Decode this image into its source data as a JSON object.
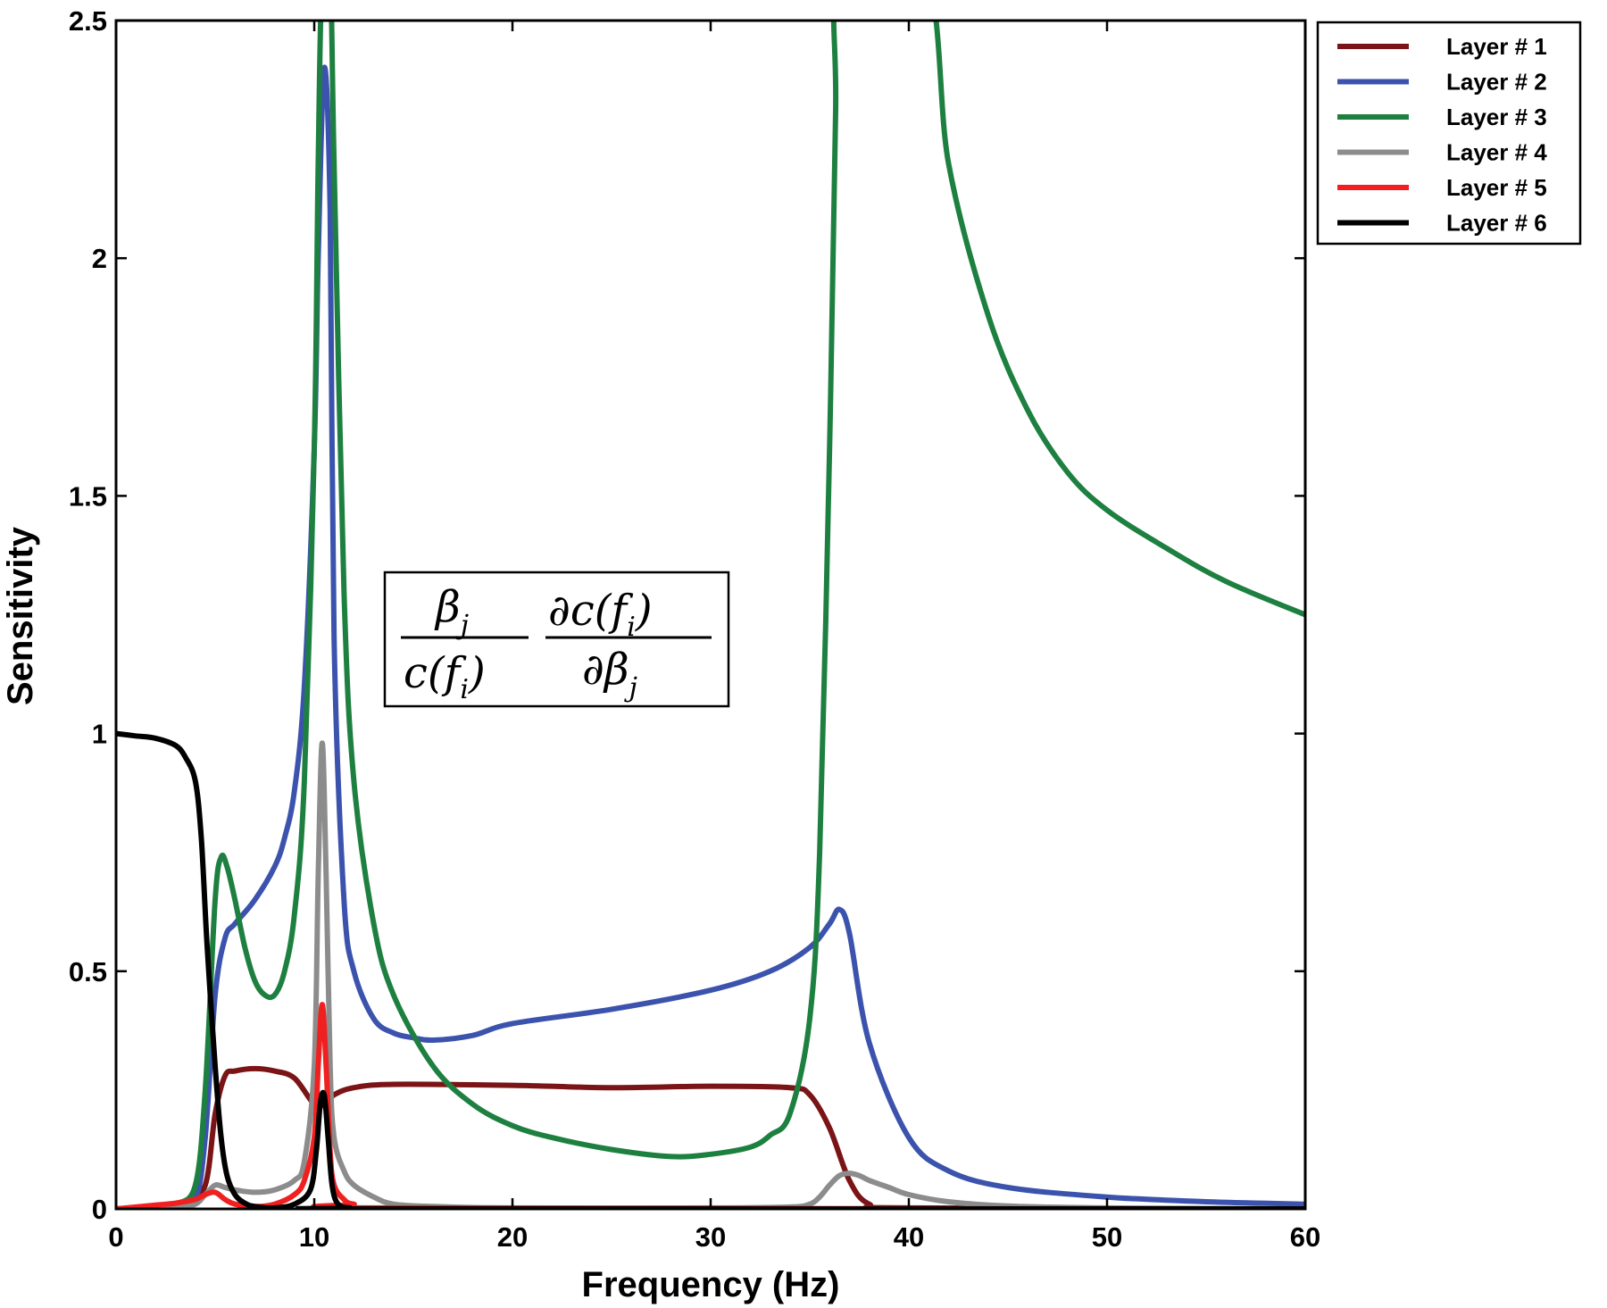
{
  "chart_data": {
    "type": "line",
    "xlabel": "Frequency (Hz)",
    "ylabel": "Sensitivity",
    "xlim": [
      0,
      60
    ],
    "ylim": [
      0,
      2.5
    ],
    "xticks": [
      "0",
      "10",
      "20",
      "30",
      "40",
      "50",
      "60"
    ],
    "yticks": [
      "0",
      "0.5",
      "1",
      "1.5",
      "2",
      "2.5"
    ],
    "grid": false,
    "legend_position": "outside-top-right",
    "annotation": {
      "num1": "β",
      "sub1": "j",
      "den1": "c(f",
      "den1_sub": "i",
      "den1_close": ")",
      "num2": "∂c(f",
      "num2_sub": "i",
      "num2_close": ")",
      "den2": "∂β",
      "den2_sub": "j"
    },
    "series": [
      {
        "name": "Layer # 1",
        "color": "#7a1416",
        "x": [
          0,
          2,
          3.5,
          4.5,
          5,
          5.5,
          6,
          7,
          8,
          9,
          10,
          10.5,
          11,
          12,
          14,
          20,
          25,
          30,
          34,
          35,
          36,
          37,
          38,
          40,
          60
        ],
        "y": [
          0,
          0.005,
          0.015,
          0.05,
          0.2,
          0.28,
          0.29,
          0.295,
          0.29,
          0.275,
          0.22,
          0.22,
          0.24,
          0.255,
          0.262,
          0.26,
          0.255,
          0.258,
          0.255,
          0.24,
          0.17,
          0.06,
          0.01,
          0.002,
          0
        ]
      },
      {
        "name": "Layer # 2",
        "color": "#3c53ad",
        "x": [
          0,
          3,
          4,
          4.5,
          5,
          5.5,
          6,
          7,
          8,
          8.5,
          9,
          9.5,
          10,
          10.2,
          10.5,
          10.8,
          11,
          11.5,
          12,
          13,
          14,
          15,
          16,
          18,
          20,
          25,
          30,
          33,
          35,
          36,
          36.5,
          37,
          38,
          40,
          42,
          45,
          50,
          55,
          60
        ],
        "y": [
          0,
          0.005,
          0.02,
          0.15,
          0.45,
          0.57,
          0.6,
          0.65,
          0.72,
          0.78,
          0.88,
          1.1,
          1.6,
          2.0,
          2.4,
          2.1,
          1.2,
          0.65,
          0.5,
          0.4,
          0.37,
          0.36,
          0.355,
          0.365,
          0.39,
          0.42,
          0.46,
          0.5,
          0.55,
          0.6,
          0.63,
          0.58,
          0.35,
          0.15,
          0.08,
          0.045,
          0.025,
          0.015,
          0.01
        ]
      },
      {
        "name": "Layer # 3",
        "color": "#1e8040",
        "x": [
          0,
          2,
          3,
          4,
          4.5,
          5,
          5.3,
          5.6,
          6,
          6.5,
          7,
          7.5,
          8,
          8.5,
          9,
          9.5,
          10,
          10.2,
          10.4,
          10.8,
          11,
          11.5,
          12,
          13,
          14,
          16,
          18,
          20,
          22,
          25,
          28,
          30,
          32,
          33,
          34,
          35,
          35.5,
          36,
          36.3,
          36.6,
          40.8,
          42,
          44,
          46,
          48,
          50,
          53,
          56,
          60
        ],
        "y": [
          0,
          0.003,
          0.01,
          0.05,
          0.25,
          0.65,
          0.74,
          0.72,
          0.65,
          0.55,
          0.48,
          0.45,
          0.45,
          0.5,
          0.62,
          0.9,
          1.6,
          2.2,
          2.6,
          2.6,
          2.2,
          1.3,
          0.9,
          0.6,
          0.45,
          0.3,
          0.22,
          0.175,
          0.15,
          0.125,
          0.11,
          0.115,
          0.13,
          0.155,
          0.2,
          0.4,
          0.75,
          1.6,
          2.3,
          2.6,
          2.6,
          2.2,
          1.88,
          1.68,
          1.55,
          1.47,
          1.39,
          1.32,
          1.25
        ]
      },
      {
        "name": "Layer # 4",
        "color": "#8c8c8c",
        "x": [
          0,
          3,
          4,
          4.5,
          5,
          5.5,
          6,
          7,
          8,
          9,
          9.5,
          10,
          10.2,
          10.4,
          10.6,
          10.8,
          11,
          11.5,
          12,
          13,
          14,
          16,
          20,
          30,
          34,
          35,
          35.5,
          36,
          36.5,
          37,
          37.5,
          38,
          39,
          40,
          42,
          45,
          50,
          60
        ],
        "y": [
          0,
          0.003,
          0.01,
          0.03,
          0.05,
          0.045,
          0.04,
          0.035,
          0.04,
          0.06,
          0.1,
          0.3,
          0.7,
          0.98,
          0.7,
          0.3,
          0.15,
          0.08,
          0.05,
          0.025,
          0.01,
          0.005,
          0.002,
          0.002,
          0.004,
          0.01,
          0.025,
          0.05,
          0.07,
          0.075,
          0.07,
          0.06,
          0.045,
          0.03,
          0.015,
          0.006,
          0.002,
          0
        ]
      },
      {
        "name": "Layer # 5",
        "color": "#f02020",
        "x": [
          0,
          2,
          3,
          4,
          4.5,
          5,
          5.5,
          6,
          7,
          8,
          9,
          9.5,
          10,
          10.2,
          10.4,
          10.6,
          10.8,
          11,
          11.5,
          12,
          14,
          60
        ],
        "y": [
          0,
          0.008,
          0.012,
          0.02,
          0.03,
          0.035,
          0.02,
          0.01,
          0.005,
          0.01,
          0.03,
          0.06,
          0.15,
          0.3,
          0.43,
          0.3,
          0.12,
          0.05,
          0.02,
          0.01,
          0.002,
          0
        ]
      },
      {
        "name": "Layer # 6",
        "color": "#000000",
        "x": [
          0,
          1,
          2,
          3,
          3.5,
          4,
          4.3,
          4.6,
          5,
          5.3,
          5.6,
          6,
          6.5,
          7,
          8,
          9,
          9.8,
          10.1,
          10.3,
          10.5,
          10.7,
          10.9,
          11.2,
          11.8,
          13,
          60
        ],
        "y": [
          1.0,
          0.995,
          0.99,
          0.975,
          0.95,
          0.9,
          0.78,
          0.55,
          0.3,
          0.15,
          0.07,
          0.03,
          0.012,
          0.005,
          0.002,
          0.01,
          0.04,
          0.12,
          0.22,
          0.24,
          0.15,
          0.05,
          0.01,
          0.002,
          0,
          0
        ]
      }
    ]
  }
}
